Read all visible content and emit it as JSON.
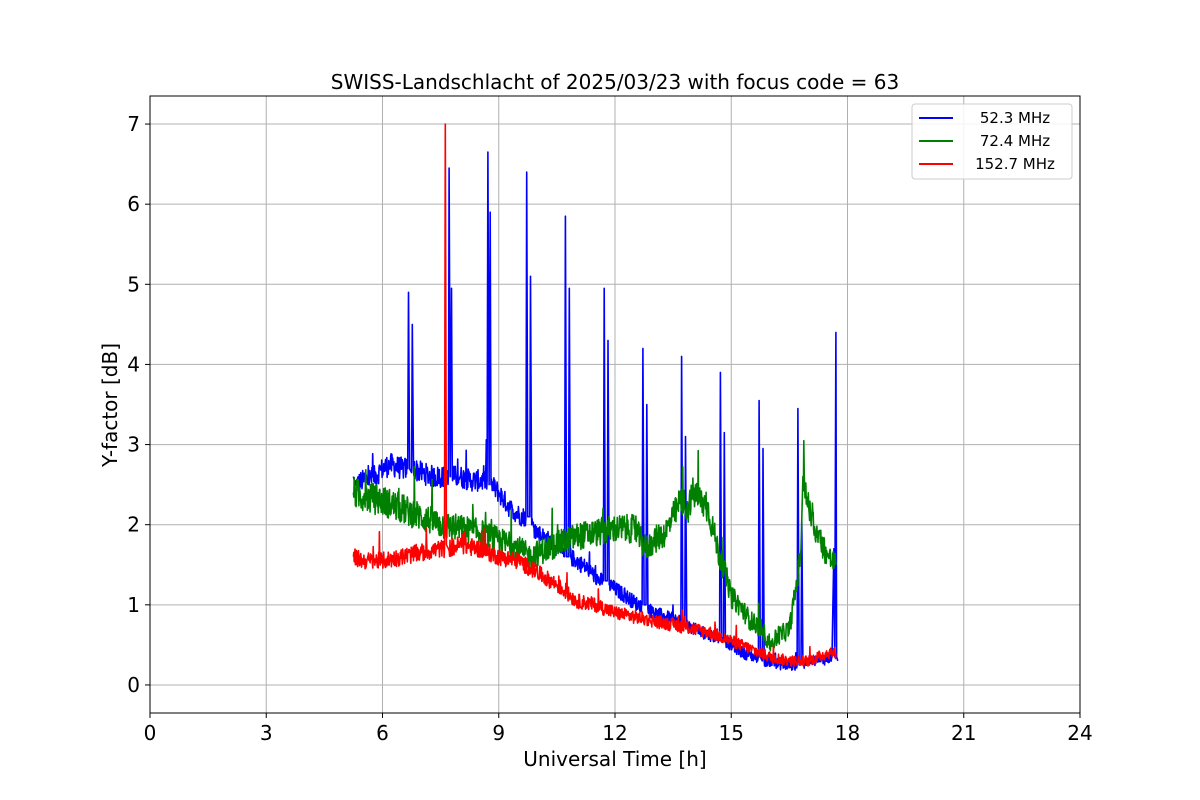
{
  "chart_data": {
    "type": "line",
    "title": "SWISS-Landschlacht of 2025/03/23 with focus code = 63",
    "xlabel": "Universal Time [h]",
    "ylabel": "Y-factor [dB]",
    "xlim": [
      0,
      24
    ],
    "ylim": [
      -0.35,
      7.35
    ],
    "xticks": [
      0,
      3,
      6,
      9,
      12,
      15,
      18,
      21,
      24
    ],
    "yticks": [
      0,
      1,
      2,
      3,
      4,
      5,
      6,
      7
    ],
    "grid": true,
    "legend_position": "top-right",
    "series": [
      {
        "name": "52.3 MHz",
        "color": "#0000ff",
        "x": [
          5.25,
          5.3,
          5.5,
          5.8,
          6.0,
          6.2,
          6.5,
          6.65,
          6.67,
          6.7,
          6.75,
          6.77,
          6.8,
          7.0,
          7.3,
          7.6,
          7.7,
          7.72,
          7.75,
          7.78,
          7.8,
          8.0,
          8.3,
          8.6,
          8.7,
          8.72,
          8.75,
          8.78,
          8.8,
          9.0,
          9.3,
          9.6,
          9.7,
          9.72,
          9.75,
          9.8,
          9.82,
          9.85,
          10.0,
          10.3,
          10.6,
          10.7,
          10.72,
          10.75,
          10.8,
          10.82,
          10.85,
          11.0,
          11.3,
          11.6,
          11.7,
          11.72,
          11.75,
          11.8,
          11.82,
          11.85,
          12.0,
          12.3,
          12.6,
          12.7,
          12.72,
          12.75,
          12.8,
          12.82,
          12.85,
          13.0,
          13.3,
          13.6,
          13.7,
          13.72,
          13.75,
          13.8,
          13.82,
          13.85,
          14.0,
          14.3,
          14.6,
          14.7,
          14.72,
          14.75,
          14.8,
          14.82,
          14.85,
          15.0,
          15.3,
          15.6,
          15.7,
          15.72,
          15.75,
          15.8,
          15.82,
          15.85,
          16.0,
          16.3,
          16.6,
          16.7,
          16.72,
          16.75,
          16.8,
          16.82,
          16.85,
          17.0,
          17.3,
          17.6,
          17.65,
          17.67,
          17.7,
          17.72,
          17.75
        ],
        "y": [
          2.6,
          2.5,
          2.55,
          2.6,
          2.7,
          2.75,
          2.7,
          2.7,
          4.9,
          2.7,
          2.65,
          4.5,
          2.7,
          2.65,
          2.6,
          2.6,
          2.6,
          6.45,
          2.6,
          4.95,
          2.6,
          2.6,
          2.55,
          2.55,
          2.55,
          6.65,
          2.5,
          5.9,
          2.5,
          2.4,
          2.2,
          2.1,
          2.1,
          6.4,
          2.1,
          2.1,
          5.1,
          2.0,
          1.9,
          1.8,
          1.65,
          1.6,
          5.85,
          1.6,
          1.6,
          4.95,
          1.6,
          1.55,
          1.45,
          1.3,
          1.3,
          4.95,
          1.3,
          1.3,
          4.3,
          1.25,
          1.2,
          1.1,
          1.0,
          1.0,
          4.2,
          1.0,
          1.0,
          3.5,
          0.95,
          0.9,
          0.85,
          0.8,
          0.8,
          4.1,
          0.8,
          0.75,
          3.1,
          0.75,
          0.7,
          0.65,
          0.6,
          0.6,
          3.9,
          0.6,
          0.55,
          3.15,
          0.55,
          0.5,
          0.4,
          0.35,
          0.35,
          3.55,
          0.35,
          0.3,
          2.95,
          0.3,
          0.3,
          0.25,
          0.25,
          0.25,
          3.45,
          0.25,
          0.25,
          2.05,
          0.25,
          0.3,
          0.3,
          0.35,
          1.7,
          0.35,
          4.4,
          0.35,
          0.3
        ]
      },
      {
        "name": "72.4 MHz",
        "color": "#008000",
        "x": [
          5.25,
          5.5,
          6.0,
          6.5,
          7.0,
          7.5,
          8.0,
          8.5,
          9.0,
          9.5,
          9.8,
          10.0,
          10.5,
          11.0,
          11.5,
          12.0,
          12.5,
          12.8,
          13.0,
          13.3,
          13.5,
          13.7,
          13.9,
          14.0,
          14.2,
          14.4,
          14.5,
          14.7,
          14.9,
          15.0,
          15.2,
          15.5,
          15.8,
          16.0,
          16.2,
          16.5,
          16.7,
          16.8,
          16.85,
          17.0,
          17.2,
          17.5,
          17.7
        ],
        "y": [
          2.4,
          2.35,
          2.3,
          2.2,
          2.1,
          2.0,
          1.95,
          1.9,
          1.8,
          1.7,
          1.6,
          1.65,
          1.75,
          1.85,
          1.9,
          1.95,
          1.95,
          1.7,
          1.8,
          1.9,
          2.1,
          2.3,
          2.2,
          2.4,
          2.3,
          2.2,
          2.0,
          1.6,
          1.3,
          1.1,
          1.0,
          0.8,
          0.7,
          0.5,
          0.6,
          0.7,
          1.3,
          1.7,
          2.6,
          2.2,
          1.9,
          1.6,
          1.5
        ]
      },
      {
        "name": "152.7 MHz",
        "color": "#ff0000",
        "x": [
          5.25,
          5.5,
          6.0,
          6.5,
          7.0,
          7.5,
          7.6,
          7.62,
          7.65,
          7.7,
          8.0,
          8.5,
          9.0,
          9.5,
          10.0,
          10.5,
          11.0,
          11.5,
          12.0,
          12.5,
          13.0,
          13.5,
          14.0,
          14.5,
          15.0,
          15.5,
          16.0,
          16.5,
          17.0,
          17.5,
          17.7
        ],
        "y": [
          1.6,
          1.55,
          1.55,
          1.6,
          1.65,
          1.7,
          1.7,
          7.0,
          1.75,
          1.7,
          1.75,
          1.7,
          1.6,
          1.55,
          1.4,
          1.25,
          1.05,
          1.0,
          0.9,
          0.85,
          0.8,
          0.75,
          0.7,
          0.65,
          0.55,
          0.45,
          0.35,
          0.3,
          0.3,
          0.4,
          0.4
        ]
      }
    ]
  }
}
